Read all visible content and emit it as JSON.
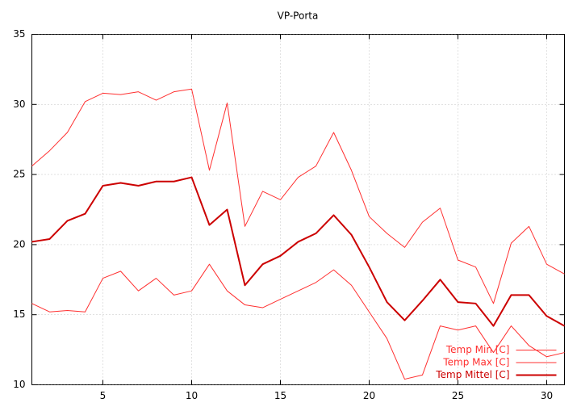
{
  "chart_data": {
    "type": "line",
    "title": "VP-Porta",
    "x": [
      1,
      2,
      3,
      4,
      5,
      6,
      7,
      8,
      9,
      10,
      11,
      12,
      13,
      14,
      15,
      16,
      17,
      18,
      19,
      20,
      21,
      22,
      23,
      24,
      25,
      26,
      27,
      28,
      29,
      30,
      31
    ],
    "series": [
      {
        "name": "Temp Min [C]",
        "color": "#ff3030",
        "line_width": 1,
        "values": [
          15.8,
          15.2,
          15.3,
          15.2,
          17.6,
          18.1,
          16.7,
          17.6,
          16.4,
          16.7,
          18.6,
          16.7,
          15.7,
          15.5,
          16.1,
          16.7,
          17.3,
          18.2,
          17.1,
          15.2,
          13.3,
          10.4,
          10.7,
          14.2,
          13.9,
          14.2,
          12.3,
          14.2,
          12.8,
          12.0,
          12.3
        ]
      },
      {
        "name": "Temp Max [C]",
        "color": "#ff3030",
        "line_width": 1,
        "values": [
          25.6,
          26.7,
          28.0,
          30.2,
          30.8,
          30.7,
          30.9,
          30.3,
          30.9,
          31.1,
          25.3,
          30.1,
          21.3,
          23.8,
          23.2,
          24.8,
          25.6,
          28.0,
          25.3,
          22.0,
          20.8,
          19.8,
          21.6,
          22.6,
          18.9,
          18.4,
          15.8,
          20.1,
          21.3,
          18.6,
          17.9
        ]
      },
      {
        "name": "Temp Mittel [C]",
        "color": "#cc0000",
        "line_width": 2,
        "values": [
          20.2,
          20.4,
          21.7,
          22.2,
          24.2,
          24.4,
          24.2,
          24.5,
          24.5,
          24.8,
          21.4,
          22.5,
          17.1,
          18.6,
          19.2,
          20.2,
          20.8,
          22.1,
          20.7,
          18.4,
          15.9,
          14.6,
          16.0,
          17.5,
          15.9,
          15.8,
          14.2,
          16.4,
          16.4,
          14.9,
          14.2
        ]
      }
    ],
    "xlim": [
      1,
      31
    ],
    "xticks": [
      5,
      10,
      15,
      20,
      25,
      30
    ],
    "ylim": [
      10,
      35
    ],
    "yticks": [
      10,
      15,
      20,
      25,
      30,
      35
    ],
    "grid": true,
    "legend": "bottom-right"
  }
}
